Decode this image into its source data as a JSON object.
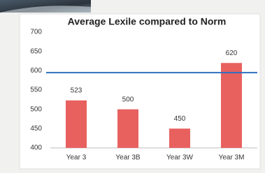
{
  "chart_data": {
    "type": "bar",
    "title": "Average Lexile compared to Norm",
    "categories": [
      "Year 3",
      "Year 3B",
      "Year 3W",
      "Year 3M"
    ],
    "values": [
      523,
      500,
      450,
      620
    ],
    "color": "#e8615f",
    "ylim": [
      400,
      700
    ],
    "yticks": [
      400,
      450,
      500,
      550,
      600,
      650,
      700
    ],
    "reference_line": {
      "value": 595,
      "color": "#2e6fc0"
    }
  }
}
